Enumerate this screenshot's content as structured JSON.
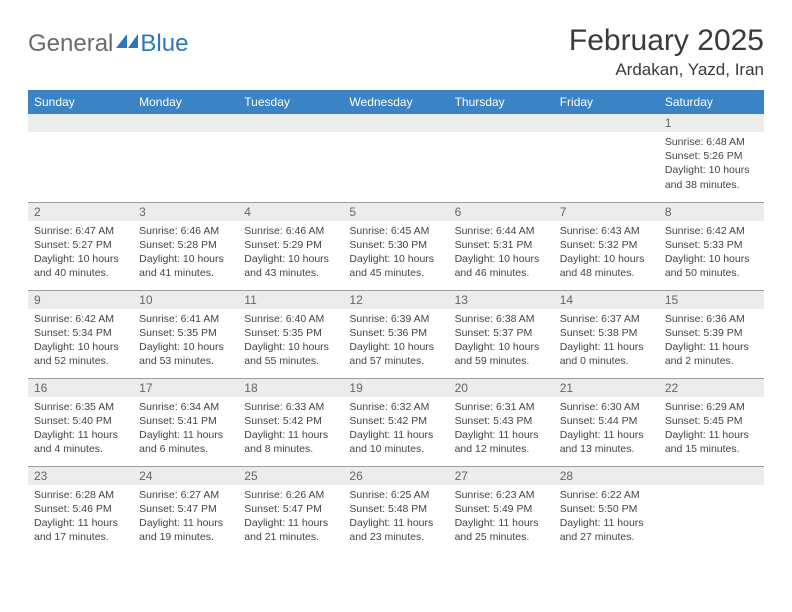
{
  "logo": {
    "part1": "General",
    "part2": "Blue"
  },
  "title": "February 2025",
  "location": "Ardakan, Yazd, Iran",
  "colors": {
    "header_bg": "#3a83c5",
    "header_fg": "#ffffff",
    "daynum_bg": "#ececec",
    "daynum_fg": "#666666",
    "border": "#9aa0a6",
    "text": "#444444",
    "logo_gray": "#6b6b6b",
    "logo_blue": "#2f77bb"
  },
  "fonts": {
    "title_size": 30,
    "location_size": 17,
    "dayhead_size": 12,
    "daynum_size": 12,
    "body_size": 10.5
  },
  "day_headers": [
    "Sunday",
    "Monday",
    "Tuesday",
    "Wednesday",
    "Thursday",
    "Friday",
    "Saturday"
  ],
  "weeks": [
    [
      {
        "n": "",
        "sunrise": "",
        "sunset": "",
        "daylight": ""
      },
      {
        "n": "",
        "sunrise": "",
        "sunset": "",
        "daylight": ""
      },
      {
        "n": "",
        "sunrise": "",
        "sunset": "",
        "daylight": ""
      },
      {
        "n": "",
        "sunrise": "",
        "sunset": "",
        "daylight": ""
      },
      {
        "n": "",
        "sunrise": "",
        "sunset": "",
        "daylight": ""
      },
      {
        "n": "",
        "sunrise": "",
        "sunset": "",
        "daylight": ""
      },
      {
        "n": "1",
        "sunrise": "Sunrise: 6:48 AM",
        "sunset": "Sunset: 5:26 PM",
        "daylight": "Daylight: 10 hours and 38 minutes."
      }
    ],
    [
      {
        "n": "2",
        "sunrise": "Sunrise: 6:47 AM",
        "sunset": "Sunset: 5:27 PM",
        "daylight": "Daylight: 10 hours and 40 minutes."
      },
      {
        "n": "3",
        "sunrise": "Sunrise: 6:46 AM",
        "sunset": "Sunset: 5:28 PM",
        "daylight": "Daylight: 10 hours and 41 minutes."
      },
      {
        "n": "4",
        "sunrise": "Sunrise: 6:46 AM",
        "sunset": "Sunset: 5:29 PM",
        "daylight": "Daylight: 10 hours and 43 minutes."
      },
      {
        "n": "5",
        "sunrise": "Sunrise: 6:45 AM",
        "sunset": "Sunset: 5:30 PM",
        "daylight": "Daylight: 10 hours and 45 minutes."
      },
      {
        "n": "6",
        "sunrise": "Sunrise: 6:44 AM",
        "sunset": "Sunset: 5:31 PM",
        "daylight": "Daylight: 10 hours and 46 minutes."
      },
      {
        "n": "7",
        "sunrise": "Sunrise: 6:43 AM",
        "sunset": "Sunset: 5:32 PM",
        "daylight": "Daylight: 10 hours and 48 minutes."
      },
      {
        "n": "8",
        "sunrise": "Sunrise: 6:42 AM",
        "sunset": "Sunset: 5:33 PM",
        "daylight": "Daylight: 10 hours and 50 minutes."
      }
    ],
    [
      {
        "n": "9",
        "sunrise": "Sunrise: 6:42 AM",
        "sunset": "Sunset: 5:34 PM",
        "daylight": "Daylight: 10 hours and 52 minutes."
      },
      {
        "n": "10",
        "sunrise": "Sunrise: 6:41 AM",
        "sunset": "Sunset: 5:35 PM",
        "daylight": "Daylight: 10 hours and 53 minutes."
      },
      {
        "n": "11",
        "sunrise": "Sunrise: 6:40 AM",
        "sunset": "Sunset: 5:35 PM",
        "daylight": "Daylight: 10 hours and 55 minutes."
      },
      {
        "n": "12",
        "sunrise": "Sunrise: 6:39 AM",
        "sunset": "Sunset: 5:36 PM",
        "daylight": "Daylight: 10 hours and 57 minutes."
      },
      {
        "n": "13",
        "sunrise": "Sunrise: 6:38 AM",
        "sunset": "Sunset: 5:37 PM",
        "daylight": "Daylight: 10 hours and 59 minutes."
      },
      {
        "n": "14",
        "sunrise": "Sunrise: 6:37 AM",
        "sunset": "Sunset: 5:38 PM",
        "daylight": "Daylight: 11 hours and 0 minutes."
      },
      {
        "n": "15",
        "sunrise": "Sunrise: 6:36 AM",
        "sunset": "Sunset: 5:39 PM",
        "daylight": "Daylight: 11 hours and 2 minutes."
      }
    ],
    [
      {
        "n": "16",
        "sunrise": "Sunrise: 6:35 AM",
        "sunset": "Sunset: 5:40 PM",
        "daylight": "Daylight: 11 hours and 4 minutes."
      },
      {
        "n": "17",
        "sunrise": "Sunrise: 6:34 AM",
        "sunset": "Sunset: 5:41 PM",
        "daylight": "Daylight: 11 hours and 6 minutes."
      },
      {
        "n": "18",
        "sunrise": "Sunrise: 6:33 AM",
        "sunset": "Sunset: 5:42 PM",
        "daylight": "Daylight: 11 hours and 8 minutes."
      },
      {
        "n": "19",
        "sunrise": "Sunrise: 6:32 AM",
        "sunset": "Sunset: 5:42 PM",
        "daylight": "Daylight: 11 hours and 10 minutes."
      },
      {
        "n": "20",
        "sunrise": "Sunrise: 6:31 AM",
        "sunset": "Sunset: 5:43 PM",
        "daylight": "Daylight: 11 hours and 12 minutes."
      },
      {
        "n": "21",
        "sunrise": "Sunrise: 6:30 AM",
        "sunset": "Sunset: 5:44 PM",
        "daylight": "Daylight: 11 hours and 13 minutes."
      },
      {
        "n": "22",
        "sunrise": "Sunrise: 6:29 AM",
        "sunset": "Sunset: 5:45 PM",
        "daylight": "Daylight: 11 hours and 15 minutes."
      }
    ],
    [
      {
        "n": "23",
        "sunrise": "Sunrise: 6:28 AM",
        "sunset": "Sunset: 5:46 PM",
        "daylight": "Daylight: 11 hours and 17 minutes."
      },
      {
        "n": "24",
        "sunrise": "Sunrise: 6:27 AM",
        "sunset": "Sunset: 5:47 PM",
        "daylight": "Daylight: 11 hours and 19 minutes."
      },
      {
        "n": "25",
        "sunrise": "Sunrise: 6:26 AM",
        "sunset": "Sunset: 5:47 PM",
        "daylight": "Daylight: 11 hours and 21 minutes."
      },
      {
        "n": "26",
        "sunrise": "Sunrise: 6:25 AM",
        "sunset": "Sunset: 5:48 PM",
        "daylight": "Daylight: 11 hours and 23 minutes."
      },
      {
        "n": "27",
        "sunrise": "Sunrise: 6:23 AM",
        "sunset": "Sunset: 5:49 PM",
        "daylight": "Daylight: 11 hours and 25 minutes."
      },
      {
        "n": "28",
        "sunrise": "Sunrise: 6:22 AM",
        "sunset": "Sunset: 5:50 PM",
        "daylight": "Daylight: 11 hours and 27 minutes."
      },
      {
        "n": "",
        "sunrise": "",
        "sunset": "",
        "daylight": ""
      }
    ]
  ]
}
